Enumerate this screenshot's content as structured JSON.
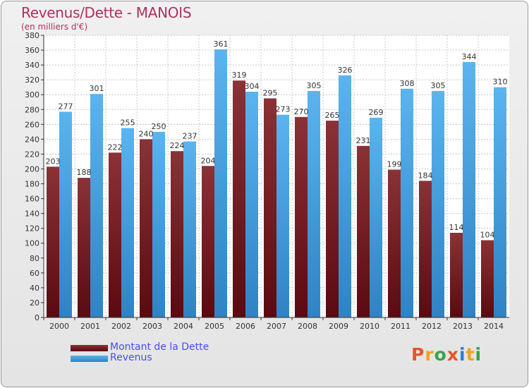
{
  "header": {
    "title": "Revenus/Dette - MANOIS",
    "subtitle": "(en milliers d'€)"
  },
  "chart_data": {
    "type": "bar",
    "title": "Revenus/Dette - MANOIS",
    "subtitle": "(en milliers d'€)",
    "xlabel": "",
    "ylabel": "",
    "categories": [
      "2000",
      "2001",
      "2002",
      "2003",
      "2004",
      "2005",
      "2006",
      "2007",
      "2008",
      "2009",
      "2010",
      "2011",
      "2012",
      "2013",
      "2014"
    ],
    "series": [
      {
        "name": "Montant de la Dette",
        "color": "#7a1f24",
        "values": [
          203,
          188,
          222,
          240,
          224,
          204,
          319,
          295,
          270,
          265,
          231,
          199,
          184,
          114,
          104
        ],
        "labels": [
          "203",
          "188",
          "222",
          "240",
          "224",
          "204",
          "319",
          "295",
          "270",
          "265",
          "231",
          "199",
          "184",
          "114",
          "104"
        ]
      },
      {
        "name": "Revenus",
        "color": "#4ea8e6",
        "values": [
          277,
          301,
          255,
          250,
          237,
          361,
          304,
          273,
          305,
          326,
          269,
          308,
          305,
          344,
          310
        ],
        "labels": [
          "277",
          "301",
          "255",
          "250",
          "237",
          "361",
          "304",
          "273",
          "305",
          "326",
          "269",
          "308",
          "305",
          "344",
          "310"
        ]
      }
    ],
    "ylim": [
      0,
      380
    ],
    "yticks": [
      0,
      20,
      40,
      60,
      80,
      100,
      120,
      140,
      160,
      180,
      200,
      220,
      240,
      260,
      280,
      300,
      320,
      340,
      360,
      380
    ],
    "ytick_labels": [
      "0",
      "20",
      "40",
      "60",
      "80",
      "100",
      "120",
      "140",
      "160",
      "180",
      "200",
      "220",
      "240",
      "260",
      "280",
      "300",
      "320",
      "340",
      "360",
      "380"
    ],
    "grid": true,
    "legend_position": "bottom-left"
  },
  "legend": {
    "items": [
      {
        "label": "Montant de la Dette",
        "color": "#7a1f24"
      },
      {
        "label": "Revenus",
        "color": "#4ea8e6"
      }
    ]
  },
  "logo": {
    "text": "Proxiti"
  }
}
